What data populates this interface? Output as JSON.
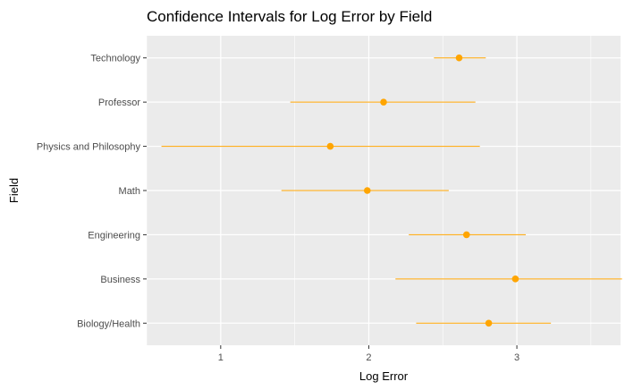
{
  "chart_data": {
    "type": "errorbar",
    "orientation": "horizontal",
    "title": "Confidence Intervals for Log Error by Field",
    "xlabel": "Log Error",
    "ylabel": "Field",
    "xlim": [
      0.5,
      3.7
    ],
    "x_ticks": [
      1,
      2,
      3
    ],
    "x_tick_labels": [
      "1",
      "2",
      "3"
    ],
    "grid": true,
    "colors": {
      "point": "#FFA500",
      "panel": "#EBEBEB",
      "grid": "#FFFFFF"
    },
    "categories": [
      "Technology",
      "Professor",
      "Physics and Philosophy",
      "Math",
      "Engineering",
      "Business",
      "Biology/Health"
    ],
    "points": [
      {
        "field": "Technology",
        "estimate": 2.61,
        "lower": 2.44,
        "upper": 2.79
      },
      {
        "field": "Professor",
        "estimate": 2.1,
        "lower": 1.47,
        "upper": 2.72
      },
      {
        "field": "Physics and Philosophy",
        "estimate": 1.74,
        "lower": 0.6,
        "upper": 2.75
      },
      {
        "field": "Math",
        "estimate": 1.99,
        "lower": 1.41,
        "upper": 2.54
      },
      {
        "field": "Engineering",
        "estimate": 2.66,
        "lower": 2.27,
        "upper": 3.06
      },
      {
        "field": "Business",
        "estimate": 2.99,
        "lower": 2.18,
        "upper": 3.71
      },
      {
        "field": "Biology/Health",
        "estimate": 2.81,
        "lower": 2.32,
        "upper": 3.23
      }
    ]
  }
}
